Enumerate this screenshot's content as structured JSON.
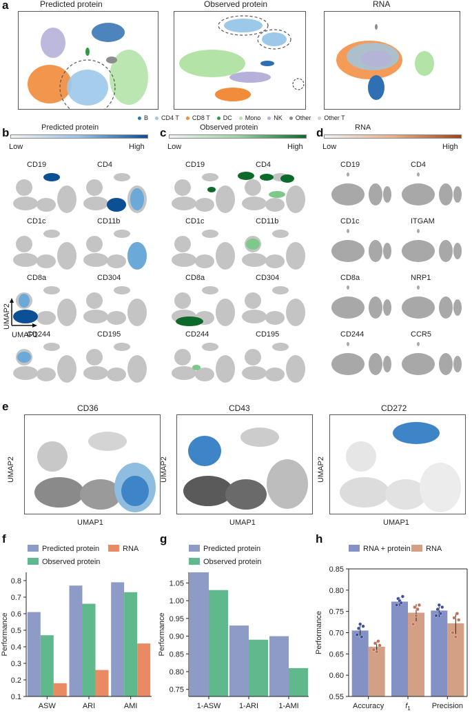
{
  "panel_letters": {
    "a": "a",
    "b": "b",
    "c": "c",
    "d": "d",
    "e": "e",
    "f": "f",
    "g": "g",
    "h": "h"
  },
  "panel_a": {
    "titles": [
      "Predicted protein",
      "Observed protein",
      "RNA"
    ],
    "legend": [
      {
        "label": "B",
        "color": "#2f6fb3"
      },
      {
        "label": "CD4 T",
        "color": "#9cc8ea"
      },
      {
        "label": "CD8 T",
        "color": "#f28b3a"
      },
      {
        "label": "DC",
        "color": "#2e9b3e"
      },
      {
        "label": "Mono",
        "color": "#b4e3a8"
      },
      {
        "label": "NK",
        "color": "#b5b1d8"
      },
      {
        "label": "Other",
        "color": "#8c8c8c"
      },
      {
        "label": "Other T",
        "color": "#d0d0d0"
      }
    ]
  },
  "panel_b": {
    "colorbar_title": "Predicted protein",
    "low": "Low",
    "high": "High",
    "markers": [
      "CD19",
      "CD4",
      "CD1c",
      "CD11b",
      "CD8a",
      "CD304",
      "CD244",
      "CD195"
    ],
    "axis_y": "UMAP2",
    "axis_x": "UMAP1",
    "colors": {
      "high": "#0b4f95",
      "mid": "#6aa9d8",
      "base": "#c8c8c8"
    }
  },
  "panel_c": {
    "colorbar_title": "Observed protein",
    "low": "Low",
    "high": "High",
    "markers": [
      "CD19",
      "CD4",
      "CD1c",
      "CD11b",
      "CD8a",
      "CD304",
      "CD244",
      "CD195"
    ],
    "colors": {
      "high": "#0d6a2a",
      "mid": "#7cc98a",
      "base": "#c8c8c8"
    }
  },
  "panel_d": {
    "colorbar_title": "RNA",
    "low": "Low",
    "high": "High",
    "markers": [
      "CD19",
      "CD4",
      "CD1c",
      "ITGAM",
      "CD8a",
      "NRP1",
      "CD244",
      "CCR5"
    ],
    "colors": {
      "high": "#a0441a",
      "base": "#9a9a9a"
    }
  },
  "panel_e": {
    "titles": [
      "CD36",
      "CD43",
      "CD272"
    ],
    "axis_y": "UMAP2",
    "axis_x": "UMAP1"
  },
  "chart_data": [
    {
      "id": "f",
      "type": "bar",
      "ylabel": "Performance",
      "ylim": [
        0.1,
        0.85
      ],
      "yticks": [
        0.1,
        0.2,
        0.3,
        0.4,
        0.5,
        0.6,
        0.7,
        0.8
      ],
      "categories": [
        "ASW",
        "ARI",
        "AMI"
      ],
      "series": [
        {
          "name": "Predicted protein",
          "color": "#8f9bc7",
          "values": [
            0.61,
            0.77,
            0.79
          ]
        },
        {
          "name": "Observed protein",
          "color": "#5fb98c",
          "values": [
            0.47,
            0.66,
            0.73
          ]
        },
        {
          "name": "RNA",
          "color": "#e98a62",
          "values": [
            0.18,
            0.26,
            0.42
          ]
        }
      ]
    },
    {
      "id": "g",
      "type": "bar",
      "ylabel": "Performance",
      "ylim": [
        0.73,
        1.08
      ],
      "yticks": [
        0.75,
        0.8,
        0.85,
        0.9,
        0.95,
        1.0,
        1.05
      ],
      "categories": [
        "1-ASW",
        "1-ARI",
        "1-AMI"
      ],
      "series": [
        {
          "name": "Predicted protein",
          "color": "#8f9bc7",
          "values": [
            1.08,
            0.93,
            0.9
          ]
        },
        {
          "name": "Observed protein",
          "color": "#5fb98c",
          "values": [
            1.03,
            0.89,
            0.81
          ]
        }
      ]
    },
    {
      "id": "h",
      "type": "bar",
      "ylabel": "Performance",
      "ylim": [
        0.55,
        0.85
      ],
      "yticks": [
        0.55,
        0.6,
        0.65,
        0.7,
        0.75,
        0.8,
        0.85
      ],
      "categories": [
        "Accuracy",
        "f1",
        "Precision"
      ],
      "category_main": [
        "Accuracy",
        "f",
        "Precision"
      ],
      "category_sub": [
        "",
        "1",
        ""
      ],
      "series": [
        {
          "name": "RNA + protein",
          "color": "#8391c4",
          "values": [
            0.705,
            0.773,
            0.752
          ],
          "errors": [
            0.012,
            0.01,
            0.015
          ],
          "points": [
            [
              0.695,
              0.71,
              0.72,
              0.69,
              0.715
            ],
            [
              0.765,
              0.78,
              0.775,
              0.77,
              0.785
            ],
            [
              0.74,
              0.755,
              0.765,
              0.745,
              0.76
            ]
          ]
        },
        {
          "name": "RNA",
          "color": "#d4a085",
          "values": [
            0.667,
            0.747,
            0.722
          ],
          "errors": [
            0.012,
            0.02,
            0.025
          ],
          "points": [
            [
              0.66,
              0.675,
              0.655,
              0.68,
              0.67
            ],
            [
              0.72,
              0.76,
              0.74,
              0.755,
              0.765
            ],
            [
              0.7,
              0.735,
              0.69,
              0.745,
              0.73
            ]
          ]
        }
      ]
    }
  ]
}
